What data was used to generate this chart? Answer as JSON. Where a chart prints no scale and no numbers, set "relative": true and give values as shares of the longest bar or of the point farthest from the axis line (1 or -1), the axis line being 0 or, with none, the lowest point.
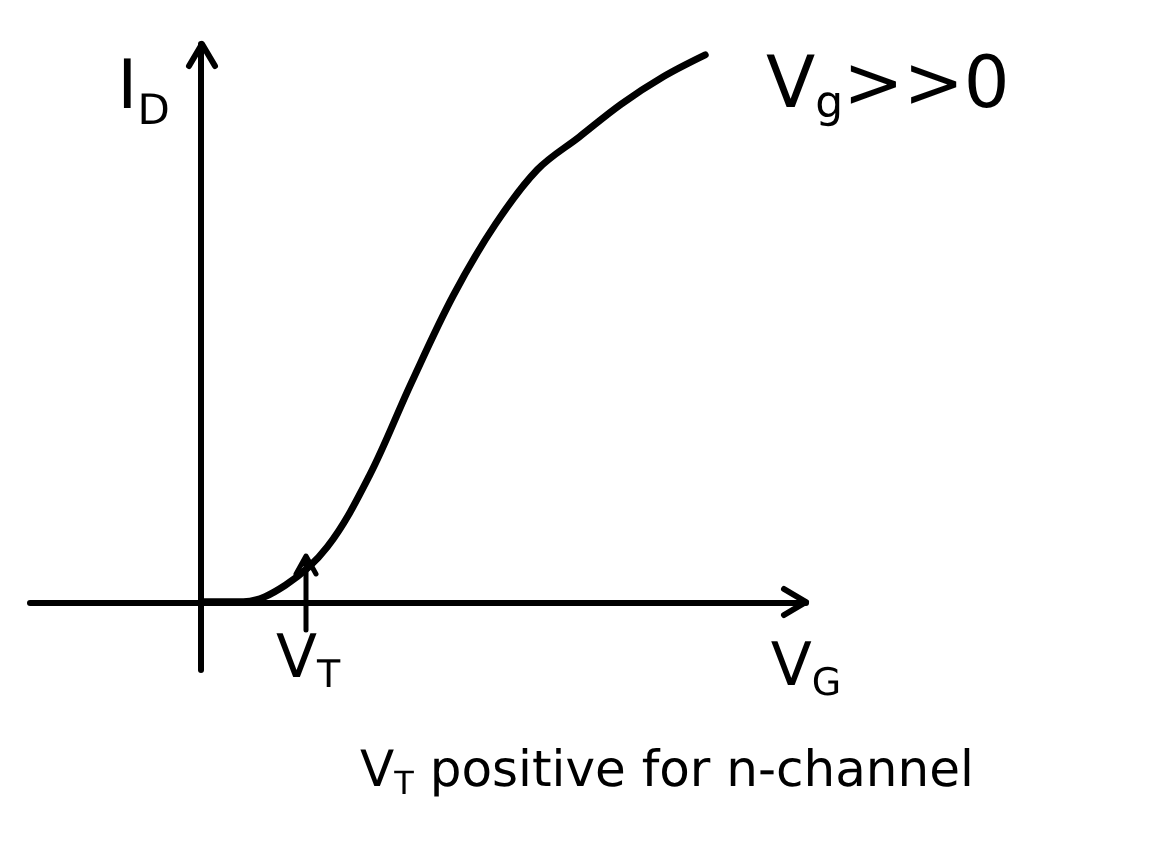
{
  "chart_data": {
    "type": "line",
    "relative": true,
    "xlabel": "V$_{G}$",
    "ylabel": "I$_{D}$",
    "categories": [
      null,
      null,
      null,
      null,
      null,
      null,
      null,
      null,
      null,
      null,
      null,
      null,
      null
    ],
    "series": [
      {
        "color": "#000000",
        "values": [
          0,
          0,
          0.03,
          0.1,
          0.23,
          0.4,
          0.56,
          0.69,
          0.79,
          0.85,
          0.91,
          0.96,
          1
        ]
      }
    ],
    "annotations": [
      "V$_{g}$>>0",
      "V$_{T}$",
      "V$_{T}$ positive for n-channel"
    ],
    "grid": false,
    "marker": "none",
    "line_style": "solid"
  }
}
